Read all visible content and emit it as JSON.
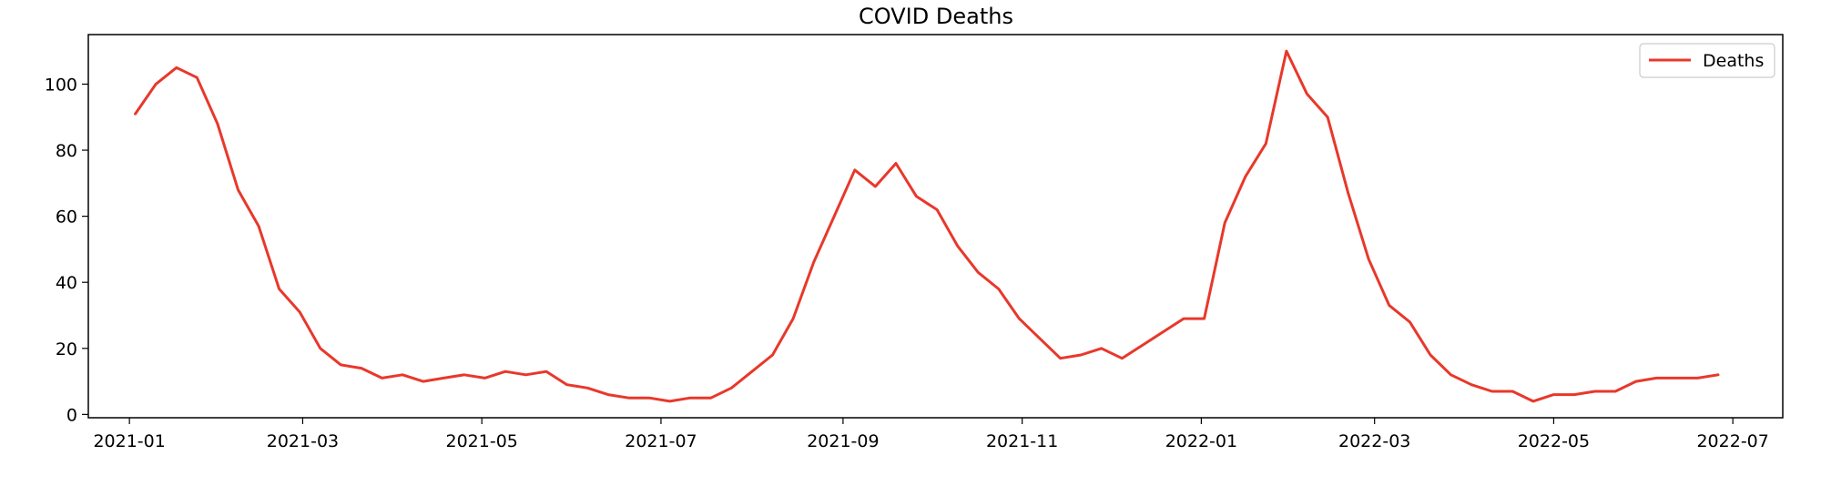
{
  "chart_data": {
    "type": "line",
    "title": "COVID Deaths",
    "xlabel": "",
    "ylabel": "",
    "xlim": [
      "2020-12-18",
      "2022-07-18"
    ],
    "ylim": [
      -1,
      115
    ],
    "x_ticks": [
      "2021-01-01",
      "2021-03-01",
      "2021-05-01",
      "2021-07-01",
      "2021-09-01",
      "2021-11-01",
      "2022-01-01",
      "2022-03-01",
      "2022-05-01",
      "2022-07-01"
    ],
    "x_tick_labels": [
      "2021-01",
      "2021-03",
      "2021-05",
      "2021-07",
      "2021-09",
      "2021-11",
      "2022-01",
      "2022-03",
      "2022-05",
      "2022-07"
    ],
    "y_ticks": [
      0,
      20,
      40,
      60,
      80,
      100
    ],
    "grid": false,
    "legend": {
      "location": "top-right"
    },
    "series": [
      {
        "name": "Deaths",
        "color": "#e8382b",
        "x": [
          "2021-01-03",
          "2021-01-10",
          "2021-01-17",
          "2021-01-24",
          "2021-01-31",
          "2021-02-07",
          "2021-02-14",
          "2021-02-21",
          "2021-02-28",
          "2021-03-07",
          "2021-03-14",
          "2021-03-21",
          "2021-03-28",
          "2021-04-04",
          "2021-04-11",
          "2021-04-18",
          "2021-04-25",
          "2021-05-02",
          "2021-05-09",
          "2021-05-16",
          "2021-05-23",
          "2021-05-30",
          "2021-06-06",
          "2021-06-13",
          "2021-06-20",
          "2021-06-27",
          "2021-07-04",
          "2021-07-11",
          "2021-07-18",
          "2021-07-25",
          "2021-08-01",
          "2021-08-08",
          "2021-08-15",
          "2021-08-22",
          "2021-08-29",
          "2021-09-05",
          "2021-09-12",
          "2021-09-19",
          "2021-09-26",
          "2021-10-03",
          "2021-10-10",
          "2021-10-17",
          "2021-10-24",
          "2021-10-31",
          "2021-11-07",
          "2021-11-14",
          "2021-11-21",
          "2021-11-28",
          "2021-12-05",
          "2021-12-12",
          "2021-12-19",
          "2021-12-26",
          "2022-01-02",
          "2022-01-09",
          "2022-01-16",
          "2022-01-23",
          "2022-01-30",
          "2022-02-06",
          "2022-02-13",
          "2022-02-20",
          "2022-02-27",
          "2022-03-06",
          "2022-03-13",
          "2022-03-20",
          "2022-03-27",
          "2022-04-03",
          "2022-04-10",
          "2022-04-17",
          "2022-04-24",
          "2022-05-01",
          "2022-05-08",
          "2022-05-15",
          "2022-05-22",
          "2022-05-29",
          "2022-06-05",
          "2022-06-12",
          "2022-06-19",
          "2022-06-26"
        ],
        "values": [
          91,
          100,
          105,
          102,
          88,
          68,
          57,
          38,
          31,
          20,
          15,
          14,
          11,
          12,
          10,
          11,
          12,
          11,
          13,
          12,
          13,
          9,
          8,
          6,
          5,
          5,
          4,
          5,
          5,
          8,
          13,
          18,
          29,
          46,
          60,
          74,
          69,
          76,
          66,
          62,
          51,
          43,
          38,
          29,
          23,
          17,
          18,
          20,
          17,
          21,
          25,
          29,
          29,
          58,
          72,
          82,
          110,
          97,
          90,
          67,
          47,
          33,
          28,
          18,
          12,
          9,
          7,
          7,
          4,
          6,
          6,
          7,
          7,
          10,
          11,
          11,
          11,
          12
        ]
      }
    ]
  }
}
